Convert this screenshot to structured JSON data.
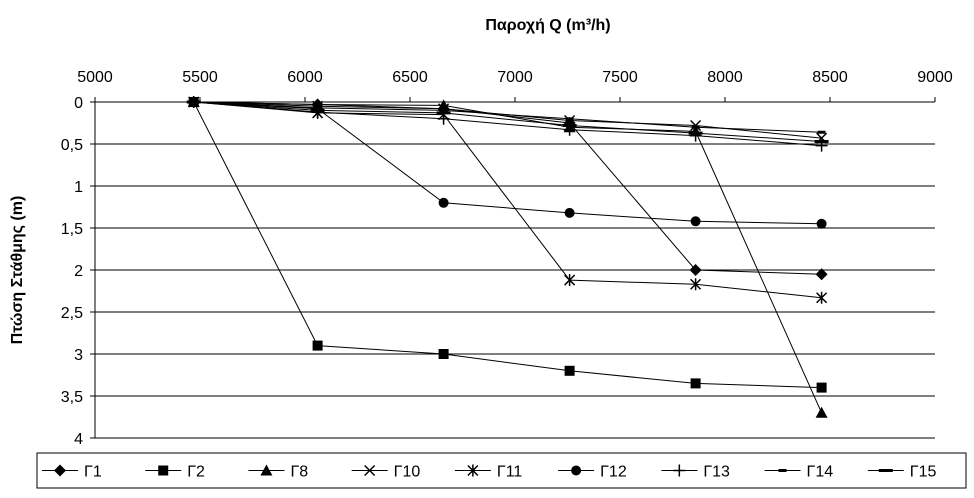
{
  "chart_data": {
    "type": "line",
    "title": "",
    "xlabel": "Παροχή Q (m³/h)",
    "ylabel": "Πτώση Στάθμης (m)",
    "x_axis_position": "top",
    "y_axis_inverted": true,
    "xlim": [
      5000,
      9000
    ],
    "ylim": [
      0,
      4
    ],
    "x_ticks": [
      "5000",
      "5500",
      "6000",
      "6500",
      "7000",
      "7500",
      "8000",
      "8500",
      "9000"
    ],
    "y_ticks": [
      "0",
      "0,5",
      "1",
      "1,5",
      "2",
      "2,5",
      "3",
      "3,5",
      "4"
    ],
    "x_tick_values": [
      5000,
      5500,
      6000,
      6500,
      7000,
      7500,
      8000,
      8500,
      9000
    ],
    "y_tick_values": [
      0,
      0.5,
      1,
      1.5,
      2,
      2.5,
      3,
      3.5,
      4
    ],
    "grid": "horizontal",
    "legend_position": "bottom",
    "series": [
      {
        "name": "Γ1",
        "marker": "diamond",
        "x": [
          5470,
          6060,
          6660,
          7260,
          7860,
          8460
        ],
        "y": [
          0,
          0.03,
          0.08,
          0.25,
          2.0,
          2.05
        ]
      },
      {
        "name": "Γ2",
        "marker": "square",
        "x": [
          5470,
          6060,
          6660,
          7260,
          7860,
          8460
        ],
        "y": [
          0,
          2.9,
          3.0,
          3.2,
          3.35,
          3.4
        ]
      },
      {
        "name": "Γ8",
        "marker": "triangle",
        "x": [
          5470,
          6060,
          6660,
          7260,
          7860,
          8460
        ],
        "y": [
          0,
          0.03,
          0.04,
          0.3,
          0.35,
          3.7
        ]
      },
      {
        "name": "Γ10",
        "marker": "x",
        "x": [
          5470,
          6060,
          6660,
          7260,
          7860,
          8460
        ],
        "y": [
          0,
          0.05,
          0.08,
          0.22,
          0.28,
          0.43
        ]
      },
      {
        "name": "Γ11",
        "marker": "star",
        "x": [
          5470,
          6060,
          6660,
          7260,
          7860,
          8460
        ],
        "y": [
          0,
          0.13,
          0.15,
          2.12,
          2.17,
          2.33
        ]
      },
      {
        "name": "Γ12",
        "marker": "circle",
        "x": [
          5470,
          6060,
          6660,
          7260,
          7860,
          8460
        ],
        "y": [
          0,
          0.08,
          1.2,
          1.32,
          1.42,
          1.45
        ]
      },
      {
        "name": "Γ13",
        "marker": "plus",
        "x": [
          5470,
          6060,
          6660,
          7260,
          7860,
          8460
        ],
        "y": [
          0,
          0.12,
          0.2,
          0.33,
          0.4,
          0.52
        ]
      },
      {
        "name": "Γ14",
        "marker": "shortdash",
        "x": [
          5470,
          6060,
          6660,
          7260,
          7860,
          8460
        ],
        "y": [
          0,
          0.07,
          0.1,
          0.2,
          0.3,
          0.36
        ]
      },
      {
        "name": "Γ15",
        "marker": "longdash",
        "x": [
          5470,
          6060,
          6660,
          7260,
          7860,
          8460
        ],
        "y": [
          0,
          0.1,
          0.13,
          0.28,
          0.37,
          0.47
        ]
      }
    ]
  }
}
